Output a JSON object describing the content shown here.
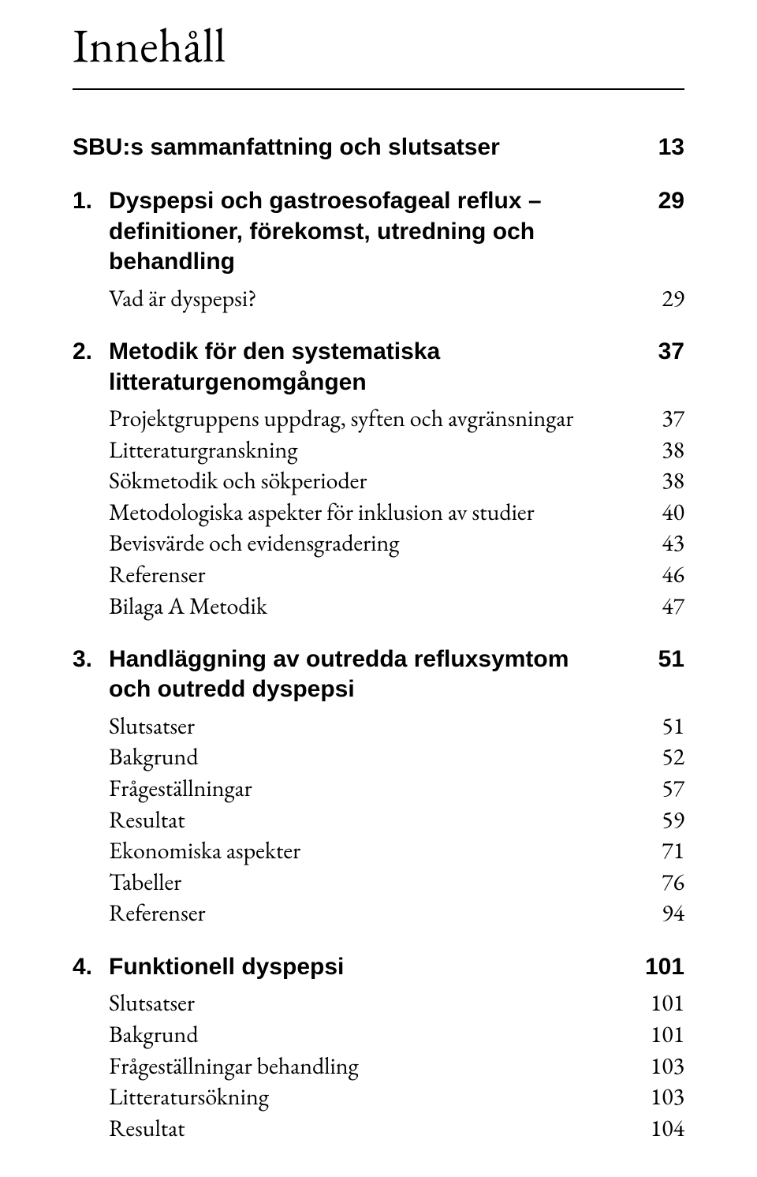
{
  "title": "Innehåll",
  "sections": [
    {
      "number": "",
      "heading": "SBU:s sammanfattning och slutsatser",
      "headingCont": "",
      "page": "13",
      "subs": []
    },
    {
      "number": "1.",
      "heading": "Dyspepsi och gastroesofageal reflux –",
      "headingCont": "definitioner, förekomst, utredning och\nbehandling",
      "page": "29",
      "subs": [
        {
          "label": "Vad är dyspepsi?",
          "page": "29"
        }
      ]
    },
    {
      "number": "2.",
      "heading": "Metodik för den systematiska",
      "headingCont": "litteraturgenomgången",
      "page": "37",
      "subs": [
        {
          "label": "Projektgruppens uppdrag, syften och avgränsningar",
          "page": "37"
        },
        {
          "label": "Litteraturgranskning",
          "page": "38"
        },
        {
          "label": "Sökmetodik och sökperioder",
          "page": "38"
        },
        {
          "label": "Metodologiska aspekter för inklusion av studier",
          "page": "40"
        },
        {
          "label": "Bevisvärde och evidensgradering",
          "page": "43"
        },
        {
          "label": "Referenser",
          "page": "46"
        },
        {
          "label": "Bilaga A Metodik",
          "page": "47"
        }
      ]
    },
    {
      "number": "3.",
      "heading": "Handläggning av outredda refluxsymtom",
      "headingCont": "och outredd dyspepsi",
      "page": "51",
      "subs": [
        {
          "label": "Slutsatser",
          "page": "51"
        },
        {
          "label": "Bakgrund",
          "page": "52"
        },
        {
          "label": "Frågeställningar",
          "page": "57"
        },
        {
          "label": "Resultat",
          "page": "59"
        },
        {
          "label": "Ekonomiska aspekter",
          "page": "71"
        },
        {
          "label": "Tabeller",
          "page": "76"
        },
        {
          "label": "Referenser",
          "page": "94"
        }
      ]
    },
    {
      "number": "4.",
      "heading": "Funktionell dyspepsi",
      "headingCont": "",
      "page": "101",
      "subs": [
        {
          "label": "Slutsatser",
          "page": "101"
        },
        {
          "label": "Bakgrund",
          "page": "101"
        },
        {
          "label": "Frågeställningar behandling",
          "page": "103"
        },
        {
          "label": "Litteratursökning",
          "page": "103"
        },
        {
          "label": "Resultat",
          "page": "104"
        }
      ]
    }
  ]
}
